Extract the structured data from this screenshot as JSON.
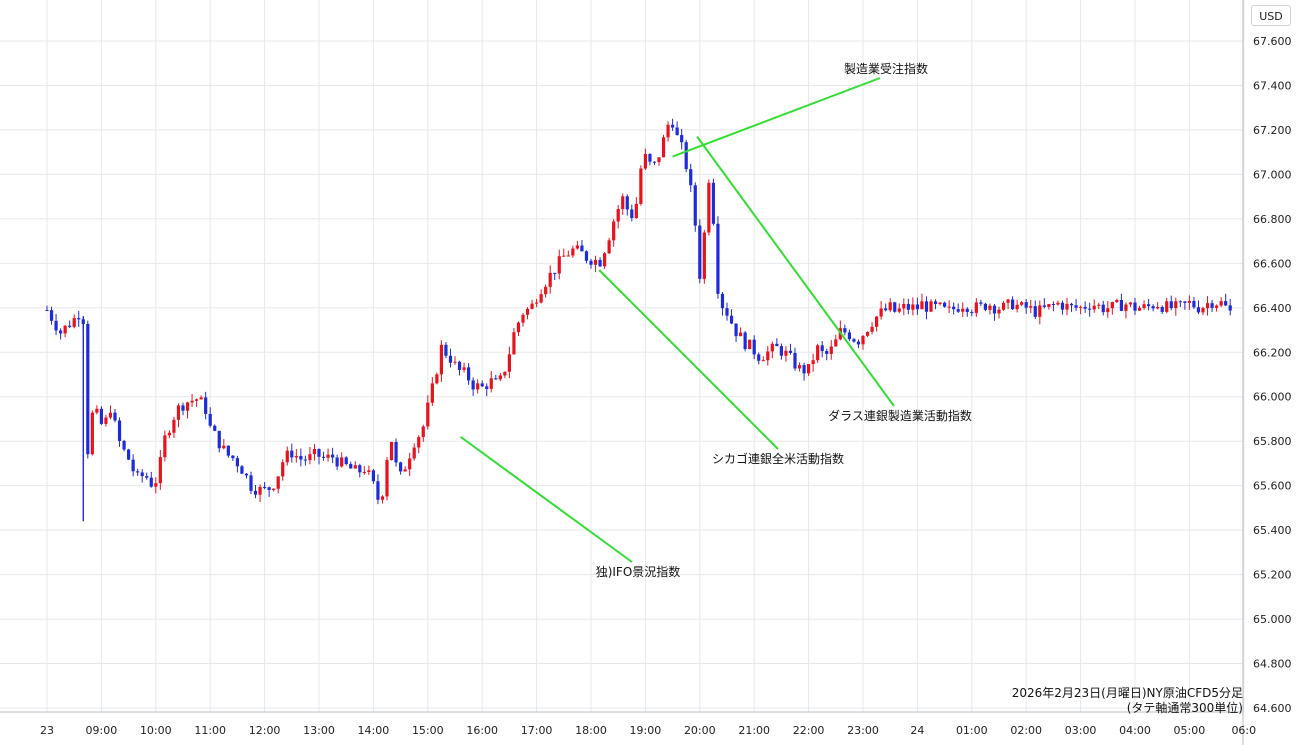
{
  "chart_data": {
    "type": "candlestick",
    "unit": "USD",
    "caption": [
      "2026年2月23日(月曜日)NY原油CFD5分足",
      "(タテ軸通常300単位)"
    ],
    "ylim": [
      64.6,
      67.7
    ],
    "y_ticks": [
      "67.600",
      "67.400",
      "67.200",
      "67.000",
      "66.800",
      "66.600",
      "66.400",
      "66.200",
      "66.000",
      "65.800",
      "65.600",
      "65.400",
      "65.200",
      "65.000",
      "64.800",
      "64.600"
    ],
    "x_ticks": [
      "23",
      "09:00",
      "10:00",
      "11:00",
      "12:00",
      "13:00",
      "14:00",
      "15:00",
      "16:00",
      "17:00",
      "18:00",
      "19:00",
      "20:00",
      "21:00",
      "22:00",
      "23:00",
      "24",
      "01:00",
      "02:00",
      "03:00",
      "04:00",
      "05:00",
      "06:0"
    ],
    "x_range": [
      -0.1,
      21.75
    ],
    "colors": {
      "up": "#e8121d",
      "down": "#1d2bd8",
      "annotation_line": "#33dd33",
      "grid": "#e5e8eb"
    },
    "series_close": [
      [
        0.0,
        66.39
      ],
      [
        0.25,
        66.29
      ],
      [
        0.5,
        66.35
      ],
      [
        0.6,
        66.38
      ],
      [
        0.667,
        66.35
      ],
      [
        0.7,
        65.92
      ],
      [
        0.75,
        65.76
      ],
      [
        0.85,
        65.95
      ],
      [
        0.95,
        65.9
      ],
      [
        1.05,
        65.85
      ],
      [
        1.15,
        65.97
      ],
      [
        1.25,
        65.87
      ],
      [
        1.35,
        65.78
      ],
      [
        1.5,
        65.72
      ],
      [
        1.65,
        65.63
      ],
      [
        1.8,
        65.65
      ],
      [
        1.95,
        65.6
      ],
      [
        2.05,
        65.65
      ],
      [
        2.15,
        65.8
      ],
      [
        2.3,
        65.9
      ],
      [
        2.45,
        65.96
      ],
      [
        2.6,
        65.98
      ],
      [
        2.75,
        65.99
      ],
      [
        2.9,
        65.96
      ],
      [
        3.0,
        65.86
      ],
      [
        3.15,
        65.8
      ],
      [
        3.3,
        65.74
      ],
      [
        3.45,
        65.72
      ],
      [
        3.6,
        65.67
      ],
      [
        3.75,
        65.6
      ],
      [
        3.9,
        65.58
      ],
      [
        4.05,
        65.58
      ],
      [
        4.2,
        65.62
      ],
      [
        4.35,
        65.72
      ],
      [
        4.5,
        65.75
      ],
      [
        4.65,
        65.72
      ],
      [
        4.8,
        65.72
      ],
      [
        4.95,
        65.74
      ],
      [
        5.1,
        65.72
      ],
      [
        5.25,
        65.73
      ],
      [
        5.4,
        65.7
      ],
      [
        5.55,
        65.68
      ],
      [
        5.7,
        65.66
      ],
      [
        5.85,
        65.68
      ],
      [
        6.0,
        65.6
      ],
      [
        6.1,
        65.53
      ],
      [
        6.2,
        65.6
      ],
      [
        6.3,
        65.86
      ],
      [
        6.4,
        65.7
      ],
      [
        6.5,
        65.64
      ],
      [
        6.6,
        65.7
      ],
      [
        6.75,
        65.8
      ],
      [
        6.9,
        65.85
      ],
      [
        7.0,
        65.95
      ],
      [
        7.1,
        66.05
      ],
      [
        7.25,
        66.22
      ],
      [
        7.4,
        66.18
      ],
      [
        7.55,
        66.12
      ],
      [
        7.7,
        66.1
      ],
      [
        7.85,
        66.05
      ],
      [
        8.0,
        66.04
      ],
      [
        8.15,
        66.07
      ],
      [
        8.3,
        66.05
      ],
      [
        8.45,
        66.15
      ],
      [
        8.6,
        66.3
      ],
      [
        8.75,
        66.38
      ],
      [
        8.9,
        66.4
      ],
      [
        9.05,
        66.48
      ],
      [
        9.2,
        66.53
      ],
      [
        9.35,
        66.58
      ],
      [
        9.5,
        66.63
      ],
      [
        9.65,
        66.66
      ],
      [
        9.8,
        66.65
      ],
      [
        9.95,
        66.62
      ],
      [
        10.05,
        66.62
      ],
      [
        10.15,
        66.6
      ],
      [
        10.3,
        66.7
      ],
      [
        10.45,
        66.82
      ],
      [
        10.6,
        66.9
      ],
      [
        10.72,
        66.8
      ],
      [
        10.85,
        66.88
      ],
      [
        10.95,
        67.1
      ],
      [
        11.05,
        67.05
      ],
      [
        11.15,
        67.03
      ],
      [
        11.3,
        67.12
      ],
      [
        11.4,
        67.22
      ],
      [
        11.5,
        67.24
      ],
      [
        11.6,
        67.15
      ],
      [
        11.7,
        67.1
      ],
      [
        11.8,
        66.98
      ],
      [
        11.9,
        66.82
      ],
      [
        12.0,
        66.55
      ],
      [
        12.05,
        66.62
      ],
      [
        12.15,
        66.96
      ],
      [
        12.2,
        67.04
      ],
      [
        12.28,
        66.66
      ],
      [
        12.35,
        66.44
      ],
      [
        12.5,
        66.38
      ],
      [
        12.65,
        66.3
      ],
      [
        12.8,
        66.25
      ],
      [
        12.95,
        66.22
      ],
      [
        13.1,
        66.18
      ],
      [
        13.25,
        66.2
      ],
      [
        13.4,
        66.22
      ],
      [
        13.55,
        66.2
      ],
      [
        13.7,
        66.16
      ],
      [
        13.85,
        66.12
      ],
      [
        14.0,
        66.12
      ],
      [
        14.15,
        66.22
      ],
      [
        14.3,
        66.18
      ],
      [
        14.45,
        66.22
      ],
      [
        14.6,
        66.3
      ],
      [
        14.75,
        66.28
      ],
      [
        14.9,
        66.25
      ],
      [
        15.05,
        66.3
      ],
      [
        15.2,
        66.35
      ],
      [
        15.35,
        66.38
      ],
      [
        15.5,
        66.4
      ],
      [
        15.6,
        66.38
      ],
      [
        15.75,
        66.4
      ],
      [
        15.9,
        66.4
      ],
      [
        16.0,
        66.4
      ],
      [
        16.1,
        66.42
      ],
      [
        16.2,
        66.4
      ],
      [
        16.3,
        66.4
      ],
      [
        16.4,
        66.4
      ],
      [
        16.55,
        66.38
      ],
      [
        16.7,
        66.4
      ],
      [
        16.85,
        66.42
      ],
      [
        17.0,
        66.4
      ],
      [
        17.15,
        66.4
      ],
      [
        17.3,
        66.42
      ],
      [
        17.45,
        66.4
      ],
      [
        17.6,
        66.4
      ],
      [
        17.75,
        66.42
      ],
      [
        17.9,
        66.4
      ],
      [
        18.0,
        66.4
      ],
      [
        18.2,
        66.38
      ],
      [
        18.4,
        66.4
      ],
      [
        18.6,
        66.42
      ],
      [
        18.8,
        66.4
      ],
      [
        19.0,
        66.4
      ],
      [
        19.2,
        66.42
      ],
      [
        19.4,
        66.4
      ],
      [
        19.6,
        66.4
      ],
      [
        19.8,
        66.42
      ],
      [
        20.0,
        66.4
      ],
      [
        20.2,
        66.4
      ],
      [
        20.4,
        66.42
      ],
      [
        20.6,
        66.4
      ],
      [
        20.8,
        66.4
      ],
      [
        21.0,
        66.42
      ],
      [
        21.2,
        66.4
      ],
      [
        21.4,
        66.43
      ],
      [
        21.6,
        66.42
      ],
      [
        21.75,
        66.38
      ]
    ],
    "annotations": [
      {
        "label": "独)IFO景況指数",
        "x": 7.6,
        "y": 65.82
      },
      {
        "label": "シカゴ連銀全米活動指数",
        "x": 10.15,
        "y": 66.57
      },
      {
        "label": "製造業受注指数",
        "x": 11.5,
        "y": 67.08
      },
      {
        "label": "ダラス連銀製造業活動指数",
        "x": 11.95,
        "y": 67.17
      }
    ]
  }
}
